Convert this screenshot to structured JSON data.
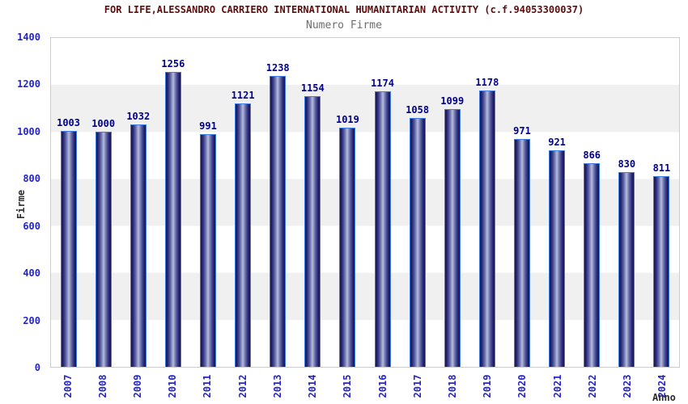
{
  "header": {
    "title": "FOR LIFE,ALESSANDRO CARRIERO INTERNATIONAL HUMANITARIAN ACTIVITY (c.f.94053300037)",
    "subtitle": "Numero Firme"
  },
  "chart_data": {
    "type": "bar",
    "title": "Numero Firme",
    "categories": [
      "2007",
      "2008",
      "2009",
      "2010",
      "2011",
      "2012",
      "2013",
      "2014",
      "2015",
      "2016",
      "2017",
      "2018",
      "2019",
      "2020",
      "2021",
      "2022",
      "2023",
      "2024"
    ],
    "values": [
      1003,
      1000,
      1032,
      1256,
      991,
      1121,
      1238,
      1154,
      1019,
      1174,
      1058,
      1099,
      1178,
      971,
      921,
      866,
      830,
      811
    ],
    "xlabel": "Anno",
    "ylabel": "Firme",
    "ylim": [
      0,
      1400
    ],
    "ytick_step": 200,
    "yticks": [
      0,
      200,
      400,
      600,
      800,
      1000,
      1200,
      1400
    ],
    "grid": "alternating-horizontal-bands",
    "legend_position": "none"
  },
  "colors": {
    "title_text": "#5e0e0e",
    "subtitle_text": "#6e6e6e",
    "axis_tick_text": "#2424cc",
    "value_label_text": "#00008b",
    "axis_title_text": "#2e2e2e",
    "plot_border": "#cccccc",
    "band_gray": "#f0f0f0",
    "band_white": "#ffffff",
    "bar_border": "#3f7ee0",
    "bar_dark": "#15154e",
    "bar_light_center": "#b7bcdc"
  }
}
